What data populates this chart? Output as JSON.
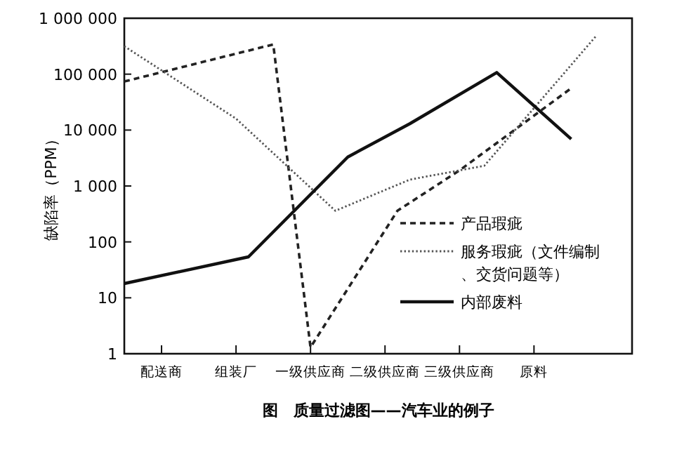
{
  "chart_data": {
    "type": "line",
    "title": "图　质量过滤图——汽车业的例子",
    "ylabel": "缺陷率（PPM）",
    "log": true,
    "grid": false,
    "legend": "bottom right",
    "categories": [
      null,
      null,
      null,
      "配送商",
      null,
      null,
      null,
      null,
      null,
      "组装厂",
      null,
      null,
      null,
      null,
      null,
      "一级供应商",
      null,
      null,
      null,
      null,
      null,
      "二级供应商",
      null,
      null,
      null,
      null,
      null,
      "三级供应商",
      null,
      null,
      null,
      null,
      null,
      "原料",
      null,
      null,
      null,
      null,
      null,
      null,
      null
    ],
    "ylim": [
      1,
      1000000
    ],
    "yticks": [
      {
        "value": 1,
        "label": "1"
      },
      {
        "value": 10,
        "label": "10"
      },
      {
        "value": 100,
        "label": "100"
      },
      {
        "value": 1000,
        "label": "1 000"
      },
      {
        "value": 10000,
        "label": "10 000"
      },
      {
        "value": 100000,
        "label": "100 000"
      },
      {
        "value": 1000000,
        "label": "1 000 000"
      }
    ],
    "series": [
      {
        "name": "产品瑕疵",
        "color": "#222222",
        "line_style": "dashed",
        "values": [
          74000,
          null,
          null,
          null,
          null,
          null,
          null,
          null,
          null,
          null,
          null,
          null,
          340000,
          null,
          null,
          1.3,
          null,
          null,
          null,
          null,
          null,
          null,
          360,
          null,
          null,
          null,
          null,
          1900,
          null,
          null,
          null,
          null,
          null,
          null,
          null,
          null,
          56000,
          null,
          null,
          null,
          null
        ]
      },
      {
        "name": "服务瑕疵（文件编制、交货问题等）",
        "color": "#555555",
        "line_style": "dotted",
        "values": [
          316000,
          null,
          null,
          null,
          null,
          null,
          null,
          null,
          null,
          16000,
          null,
          null,
          null,
          null,
          null,
          null,
          null,
          360,
          null,
          null,
          null,
          null,
          null,
          1300,
          null,
          null,
          null,
          null,
          null,
          2300,
          null,
          null,
          null,
          null,
          null,
          null,
          null,
          null,
          480000,
          null,
          null
        ]
      },
      {
        "name": "内部废料",
        "color": "#111111",
        "line_style": "solid",
        "values": [
          18,
          null,
          null,
          null,
          null,
          null,
          null,
          null,
          null,
          null,
          54,
          null,
          null,
          null,
          null,
          null,
          null,
          null,
          3300,
          null,
          null,
          null,
          null,
          13000,
          null,
          null,
          null,
          null,
          null,
          null,
          107000,
          null,
          null,
          null,
          null,
          null,
          6900,
          null,
          null,
          null,
          null
        ]
      }
    ]
  }
}
